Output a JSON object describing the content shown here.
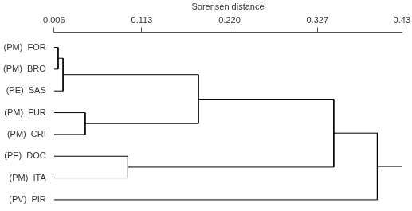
{
  "chart_data": {
    "type": "dendrogram",
    "x_label": "Sorensen distance",
    "leaves": [
      "(PM)  FOR",
      "(PM)  BRO",
      "(PE)  SAS",
      "(PM)  FUR",
      "(PM)  CRI",
      "(PE)  DOC",
      "(PM)  ITA",
      "(PV)  PIR"
    ],
    "merges": [
      {
        "a": 0,
        "b": 1,
        "distance": 0.011
      },
      {
        "a": 8,
        "b": 2,
        "distance": 0.017
      },
      {
        "a": 3,
        "b": 4,
        "distance": 0.044
      },
      {
        "a": 9,
        "b": 10,
        "distance": 0.182
      },
      {
        "a": 5,
        "b": 6,
        "distance": 0.096
      },
      {
        "a": 11,
        "b": 12,
        "distance": 0.347
      },
      {
        "a": 13,
        "b": 7,
        "distance": 0.4
      }
    ],
    "xlim": [
      0.006,
      0.43
    ],
    "xticks": [
      0.006,
      0.113,
      {
        "value": 0.22,
        "label": "0.220"
      },
      0.327,
      0.43
    ],
    "color": "#000000"
  }
}
